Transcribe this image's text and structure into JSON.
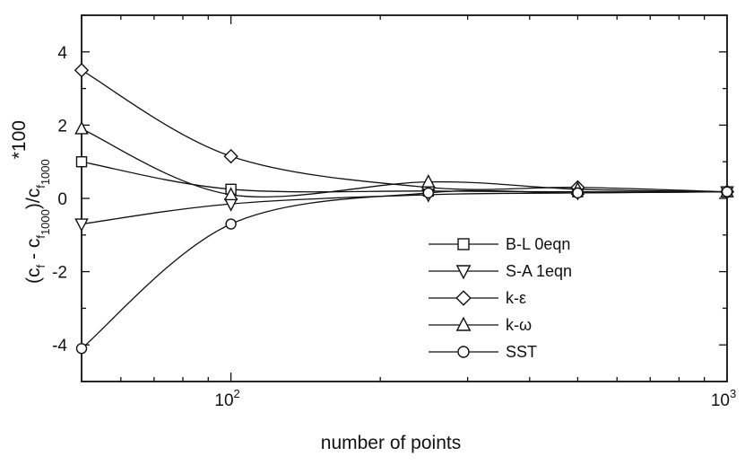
{
  "chart_data": {
    "type": "line",
    "title": "",
    "xlabel": "number of points",
    "ylabel": {
      "text": "(c",
      "sub1": "f",
      "mid": " - c",
      "sub2": "f",
      "sub2b": "1000",
      "close": ")/c",
      "sub3": "f",
      "sub3b": "1000",
      "suffix": "*100"
    },
    "x_scale": "log",
    "xlim": [
      50,
      1000
    ],
    "ylim": [
      -5,
      5
    ],
    "x_ticks": [
      {
        "value": 100,
        "base": "10",
        "exp": "2"
      },
      {
        "value": 1000,
        "base": "10",
        "exp": "3"
      }
    ],
    "y_ticks": [
      {
        "value": 4,
        "label": "4"
      },
      {
        "value": 2,
        "label": "2"
      },
      {
        "value": 0,
        "label": "0"
      },
      {
        "value": -2,
        "label": "-2"
      },
      {
        "value": -4,
        "label": "-4"
      }
    ],
    "grid": false,
    "legend_position": "lower-right",
    "x": [
      50,
      100,
      250,
      500,
      1000
    ],
    "series": [
      {
        "name": "B-L 0eqn",
        "marker": "square",
        "values": [
          1.0,
          0.25,
          0.2,
          0.18,
          0.18
        ]
      },
      {
        "name": "S-A 1eqn",
        "marker": "triangle-down",
        "values": [
          -0.7,
          -0.15,
          0.1,
          0.15,
          0.18
        ]
      },
      {
        "name": "k-ε",
        "marker": "diamond",
        "values": [
          3.5,
          1.15,
          0.3,
          0.3,
          0.18
        ]
      },
      {
        "name": "k-ω",
        "marker": "triangle-up",
        "values": [
          1.9,
          0.1,
          0.45,
          0.25,
          0.18
        ]
      },
      {
        "name": "SST",
        "marker": "circle",
        "values": [
          -4.1,
          -0.7,
          0.15,
          0.15,
          0.18
        ]
      }
    ]
  }
}
